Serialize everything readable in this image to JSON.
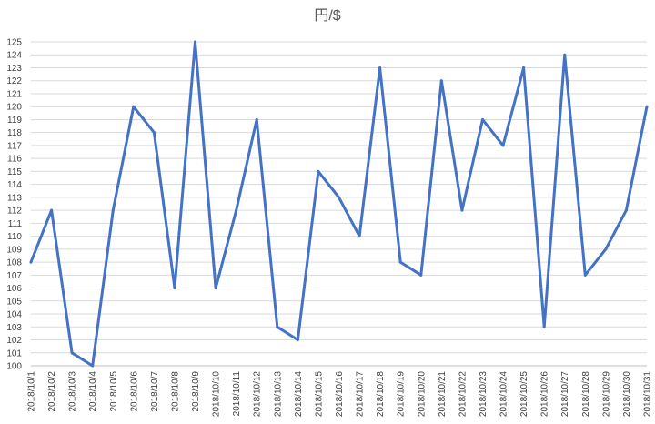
{
  "chart_data": {
    "type": "line",
    "title": "円/$",
    "xlabel": "",
    "ylabel": "",
    "ylim": [
      100,
      125
    ],
    "y_ticks": [
      100,
      101,
      102,
      103,
      104,
      105,
      106,
      107,
      108,
      109,
      110,
      111,
      112,
      113,
      114,
      115,
      116,
      117,
      118,
      119,
      120,
      121,
      122,
      123,
      124,
      125
    ],
    "grid": true,
    "legend": "none",
    "categories": [
      "2018/10/1",
      "2018/10/2",
      "2018/10/3",
      "2018/10/4",
      "2018/10/5",
      "2018/10/6",
      "2018/10/7",
      "2018/10/8",
      "2018/10/9",
      "2018/10/10",
      "2018/10/11",
      "2018/10/12",
      "2018/10/13",
      "2018/10/14",
      "2018/10/15",
      "2018/10/16",
      "2018/10/17",
      "2018/10/18",
      "2018/10/19",
      "2018/10/20",
      "2018/10/21",
      "2018/10/22",
      "2018/10/23",
      "2018/10/24",
      "2018/10/25",
      "2018/10/26",
      "2018/10/27",
      "2018/10/28",
      "2018/10/29",
      "2018/10/30",
      "2018/10/31"
    ],
    "series": [
      {
        "color": "#4472c4",
        "values": [
          108,
          112,
          101,
          100,
          112,
          120,
          118,
          106,
          125,
          106,
          112,
          119,
          103,
          102,
          115,
          113,
          110,
          123,
          108,
          107,
          122,
          112,
          119,
          117,
          123,
          103,
          124,
          107,
          109,
          112,
          120
        ]
      }
    ]
  }
}
